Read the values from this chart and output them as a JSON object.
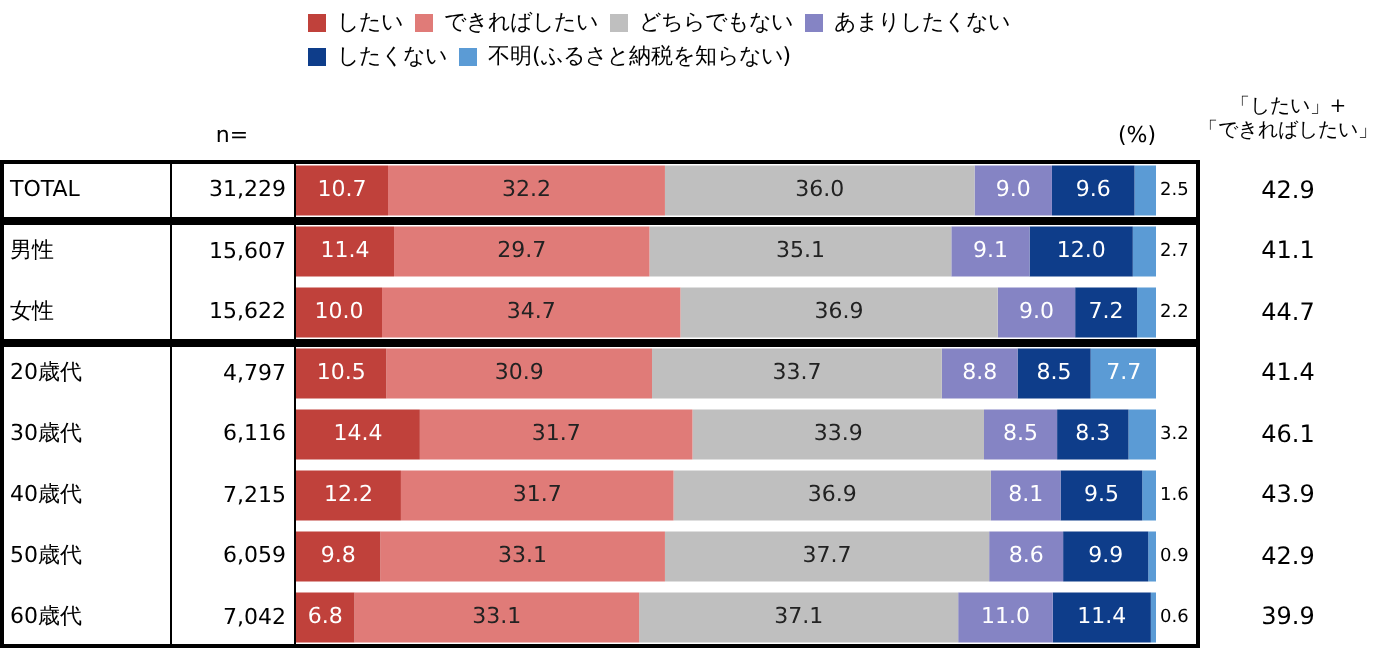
{
  "chart_data": {
    "type": "bar",
    "orientation": "horizontal",
    "stacked": true,
    "xlim": [
      0,
      100
    ],
    "tick_labels": false,
    "grid": false,
    "legend": "top",
    "categories": [
      "TOTAL",
      "男性",
      "女性",
      "20歳代",
      "30歳代",
      "40歳代",
      "50歳代",
      "60歳代"
    ],
    "series": [
      {
        "name": "したい",
        "color": "#c0413b",
        "values": [
          10.7,
          11.4,
          10.0,
          10.5,
          14.4,
          12.2,
          9.8,
          6.8
        ],
        "value_labels": [
          "10.7",
          "11.4",
          "10.0",
          "10.5",
          "14.4",
          "12.2",
          "9.8",
          "6.8"
        ]
      },
      {
        "name": "できればしたい",
        "color": "#e07b78",
        "values": [
          32.2,
          29.7,
          34.7,
          30.9,
          31.7,
          31.7,
          33.1,
          33.1
        ],
        "value_labels": [
          "32.2",
          "29.7",
          "34.7",
          "30.9",
          "31.7",
          "31.7",
          "33.1",
          "33.1"
        ]
      },
      {
        "name": "どちらでもない",
        "color": "#bfbfbf",
        "values": [
          36.0,
          35.1,
          36.9,
          33.7,
          33.9,
          36.9,
          37.7,
          37.1
        ],
        "value_labels": [
          "36.0",
          "35.1",
          "36.9",
          "33.7",
          "33.9",
          "36.9",
          "37.7",
          "37.1"
        ]
      },
      {
        "name": "あまりしたくない",
        "color": "#8584c4",
        "values": [
          9.0,
          9.1,
          9.0,
          8.8,
          8.5,
          8.1,
          8.6,
          11.0
        ],
        "value_labels": [
          "9.0",
          "9.1",
          "9.0",
          "8.8",
          "8.5",
          "8.1",
          "8.6",
          "11.0"
        ]
      },
      {
        "name": "したくない",
        "color": "#0e3d8a",
        "values": [
          9.6,
          12.0,
          7.2,
          8.5,
          8.3,
          9.5,
          9.9,
          11.4
        ],
        "value_labels": [
          "9.6",
          "12.0",
          "7.2",
          "8.5",
          "8.3",
          "9.5",
          "9.9",
          "11.4"
        ]
      },
      {
        "name": "不明(ふるさと納税を知らない)",
        "color": "#5b9bd5",
        "values": [
          2.5,
          2.7,
          2.2,
          7.7,
          3.2,
          1.6,
          0.9,
          0.6
        ],
        "value_labels": [
          "2.5",
          "2.7",
          "2.2",
          "7.7",
          "3.2",
          "1.6",
          "0.9",
          "0.6"
        ]
      }
    ],
    "annotations": [
      "n=",
      "(%)",
      "「したい」+\n「できればしたい」",
      "31,229",
      "15,607",
      "15,622",
      "4,797",
      "6,116",
      "7,215",
      "6,059",
      "7,042",
      "42.9",
      "41.1",
      "44.7",
      "41.4",
      "46.1",
      "43.9",
      "42.9",
      "39.9"
    ]
  }
}
